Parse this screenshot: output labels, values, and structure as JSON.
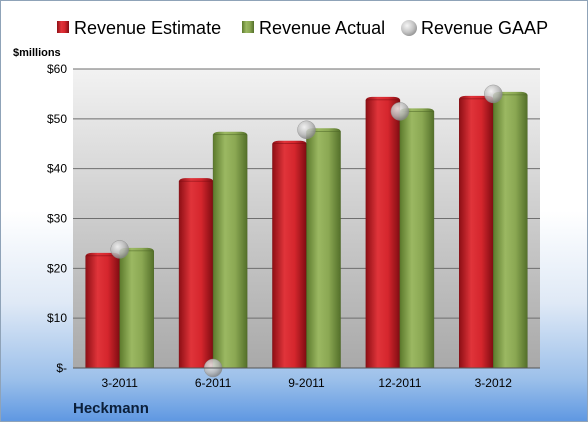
{
  "chart_data": {
    "type": "bar",
    "categories": [
      "3-2011",
      "6-2011",
      "9-2011",
      "12-2011",
      "3-2012"
    ],
    "series": [
      {
        "name": "Revenue Estimate",
        "kind": "bar",
        "color": "#c81d25",
        "values": [
          22.5,
          37.5,
          45.0,
          53.8,
          54.0
        ]
      },
      {
        "name": "Revenue Actual",
        "kind": "bar",
        "color": "#7f9d45",
        "values": [
          23.5,
          46.8,
          47.5,
          51.5,
          54.8
        ]
      },
      {
        "name": "Revenue GAAP",
        "kind": "marker",
        "color": "#b8b8b8",
        "values": [
          23.8,
          0,
          47.8,
          51.5,
          55.0
        ]
      }
    ],
    "y_ticks": [
      0,
      10,
      20,
      30,
      40,
      50,
      60
    ],
    "y_tick_labels": [
      "$-",
      "$10",
      "$20",
      "$30",
      "$40",
      "$50",
      "$60"
    ],
    "ylim": [
      0,
      60
    ],
    "ylabel": "$millions",
    "xlabel": "",
    "company": "Heckmann",
    "legend_position": "top",
    "grid": true
  }
}
